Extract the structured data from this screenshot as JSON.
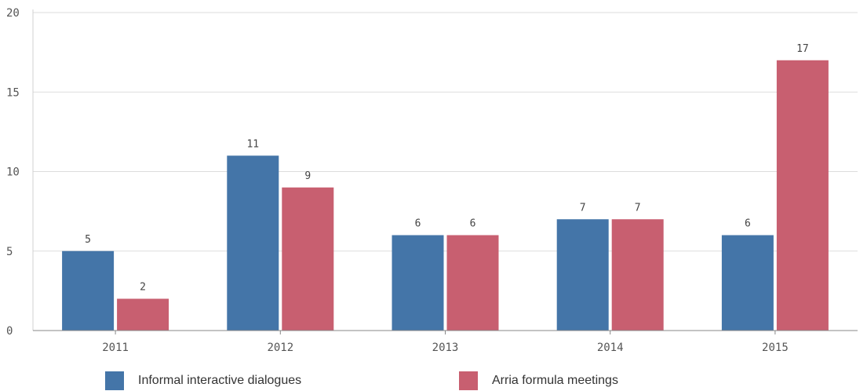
{
  "chart_data": {
    "type": "bar",
    "categories": [
      "2011",
      "2012",
      "2013",
      "2014",
      "2015"
    ],
    "series": [
      {
        "name": "Informal interactive dialogues",
        "values": [
          5,
          11,
          6,
          7,
          6
        ],
        "color": "#4475a8"
      },
      {
        "name": "Arria formula meetings",
        "values": [
          2,
          9,
          6,
          7,
          17
        ],
        "color": "#c85f70"
      }
    ],
    "title": "",
    "xlabel": "",
    "ylabel": "",
    "ylim": [
      0,
      20
    ],
    "yticks": [
      0,
      5,
      10,
      15,
      20
    ],
    "grid": true,
    "legend_position": "bottom",
    "data_labels": true
  }
}
